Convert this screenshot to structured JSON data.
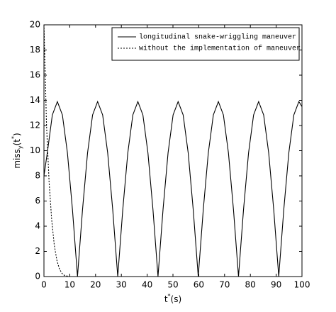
{
  "chart_data": {
    "type": "line",
    "xlabel_parts": [
      "t",
      "*",
      "(s)"
    ],
    "ylabel_parts": [
      "miss",
      "y",
      "(t",
      "*",
      ")"
    ],
    "xlim": [
      0,
      100
    ],
    "ylim": [
      0,
      20
    ],
    "xticks": [
      0,
      10,
      20,
      30,
      40,
      50,
      60,
      70,
      80,
      90,
      100
    ],
    "yticks": [
      0,
      2,
      4,
      6,
      8,
      10,
      12,
      14,
      16,
      18,
      20
    ],
    "grid": false,
    "legend": "upper right",
    "series": [
      {
        "name": "longitudinal snake-wriggling maneuver",
        "color": "#000000",
        "dash": "solid",
        "x": [
          0,
          1.3,
          3.25,
          5.2,
          7.15,
          9.1,
          11.05,
          13,
          14.95,
          16.9,
          18.85,
          20.8,
          22.75,
          24.7,
          26.65,
          28.6,
          30.55,
          32.5,
          34.45,
          36.4,
          38.35,
          40.3,
          42.25,
          44.2,
          46.15,
          48.1,
          50.05,
          52,
          53.95,
          55.9,
          57.85,
          59.8,
          61.75,
          63.7,
          65.65,
          67.6,
          69.55,
          71.5,
          73.45,
          75.4,
          77.35,
          79.3,
          81.25,
          83.2,
          85.15,
          87.1,
          89.05,
          91,
          92.95,
          94.9,
          96.85,
          98.8,
          100
        ],
        "values": [
          8,
          9.83,
          12.84,
          13.9,
          12.84,
          9.83,
          5.32,
          0,
          5.32,
          9.83,
          12.84,
          13.9,
          12.84,
          9.83,
          5.32,
          0,
          5.32,
          9.83,
          12.84,
          13.9,
          12.84,
          9.83,
          5.32,
          0,
          5.32,
          9.83,
          12.84,
          13.9,
          12.84,
          9.83,
          5.32,
          0,
          5.32,
          9.83,
          12.84,
          13.9,
          12.84,
          9.83,
          5.32,
          0,
          5.32,
          9.83,
          12.84,
          13.9,
          12.84,
          9.83,
          5.32,
          0,
          5.32,
          9.83,
          12.84,
          13.9,
          13.5
        ]
      },
      {
        "name": "without the implementation of maneuver",
        "color": "#000000",
        "dash": "dotted",
        "x": [
          0,
          0.5,
          1,
          2,
          3,
          4,
          5,
          6,
          7,
          8,
          10,
          45
        ],
        "values": [
          20,
          16,
          12,
          7.5,
          4.5,
          2.5,
          1.3,
          0.6,
          0.25,
          0.08,
          0,
          0
        ]
      }
    ]
  }
}
